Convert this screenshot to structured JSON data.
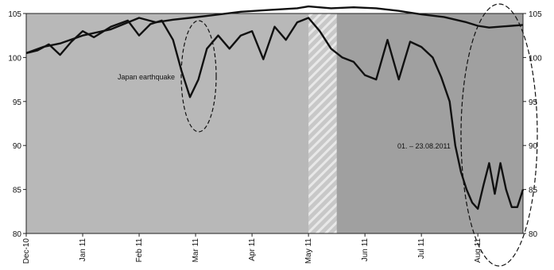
{
  "chart_data": {
    "type": "line",
    "title": "",
    "xlabel": "",
    "ylabel": "",
    "ylim": [
      80,
      105
    ],
    "y_ticks": [
      80,
      85,
      90,
      95,
      100,
      105
    ],
    "y_ticks_right": [
      80,
      85,
      90,
      95,
      100,
      105
    ],
    "x_tick_labels": [
      "Dec-10",
      "Jan 11",
      "Feb 11",
      "Mar 11",
      "Apr 11",
      "May 11",
      "Jun 11",
      "Jul 11",
      "Aug 11"
    ],
    "grid": false,
    "legend": "none",
    "background_colors": {
      "plot_area": "#b8b8b8",
      "shaded_period": "#a0a0a0",
      "hatched_band": "#c8c8c8",
      "line": "#111111"
    },
    "period_markers": {
      "hatched_from_month": 5.0,
      "hatched_to_month": 5.5,
      "shaded_from_month": 5.5
    },
    "series": [
      {
        "x": [
          0,
          0.3,
          0.6,
          1.0,
          1.5,
          2.0,
          2.3,
          2.6,
          2.9,
          3.3,
          3.8,
          4.3,
          4.8,
          5.0,
          5.4,
          5.8,
          6.2,
          6.6,
          7.0,
          7.4,
          7.8,
          8.0,
          8.2,
          8.4,
          8.6,
          8.8
        ],
        "values": [
          100.5,
          101.2,
          101.6,
          102.5,
          103.2,
          104.5,
          104.0,
          104.3,
          104.5,
          104.8,
          105.2,
          105.4,
          105.6,
          105.8,
          105.6,
          105.7,
          105.6,
          105.3,
          104.9,
          104.6,
          104.0,
          103.6,
          103.4,
          103.5,
          103.6,
          103.7
        ]
      },
      {
        "x": [
          0,
          0.2,
          0.4,
          0.6,
          0.8,
          1.0,
          1.2,
          1.5,
          1.8,
          2.0,
          2.2,
          2.4,
          2.6,
          2.75,
          2.9,
          3.05,
          3.2,
          3.4,
          3.6,
          3.8,
          4.0,
          4.2,
          4.4,
          4.6,
          4.8,
          5.0,
          5.2,
          5.4,
          5.6,
          5.8,
          6.0,
          6.2,
          6.4,
          6.6,
          6.8,
          7.0,
          7.2,
          7.35,
          7.5,
          7.6,
          7.7,
          7.8,
          7.9,
          8.0,
          8.1,
          8.2,
          8.3,
          8.4,
          8.5,
          8.6,
          8.7,
          8.8
        ],
        "values": [
          100.5,
          100.8,
          101.5,
          100.3,
          101.8,
          103.0,
          102.3,
          103.5,
          104.2,
          102.5,
          103.8,
          104.2,
          102.0,
          98.5,
          95.5,
          97.5,
          101.0,
          102.5,
          101.0,
          102.5,
          103.0,
          99.8,
          103.5,
          102.0,
          104.0,
          104.5,
          103.0,
          101.0,
          100.0,
          99.5,
          98.0,
          97.5,
          102.0,
          97.5,
          101.8,
          101.2,
          100.0,
          97.8,
          95.0,
          90.0,
          87.0,
          85.0,
          83.5,
          82.8,
          85.5,
          88.0,
          84.5,
          88.0,
          85.0,
          83.0,
          83.0,
          85.0
        ]
      }
    ]
  },
  "annotations": {
    "japan": "Japan earthquake",
    "period": "01. – 23.08.2011"
  }
}
